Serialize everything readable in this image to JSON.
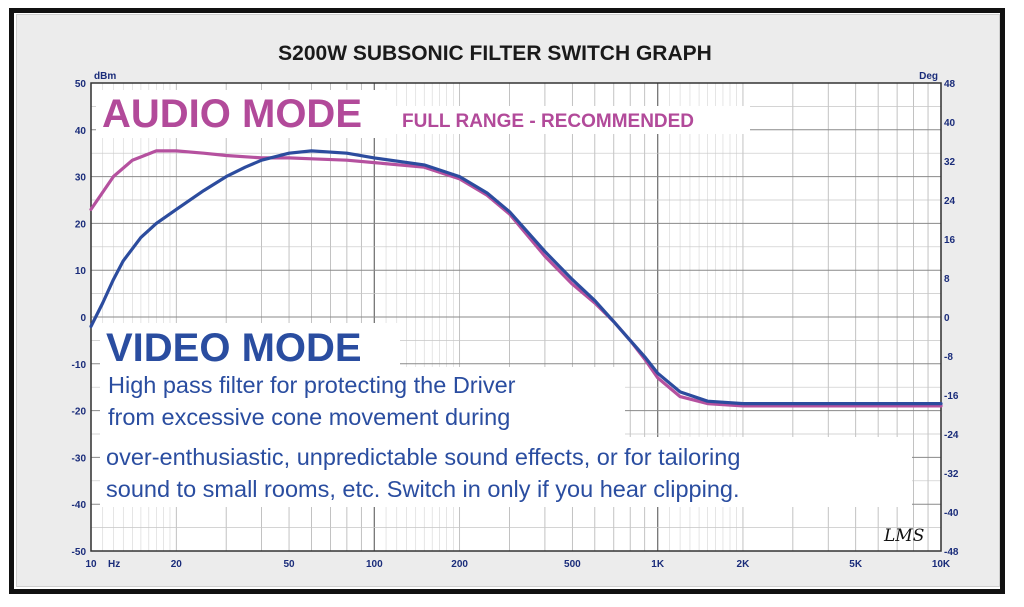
{
  "chart_data": {
    "type": "line",
    "title": "S200W SUBSONIC FILTER SWITCH GRAPH",
    "x_scale": "log",
    "xlim": [
      10,
      10000
    ],
    "x_ticks": [
      {
        "value": 10,
        "label": "10"
      },
      {
        "value": 20,
        "label": "20"
      },
      {
        "value": 50,
        "label": "50"
      },
      {
        "value": 100,
        "label": "100"
      },
      {
        "value": 200,
        "label": "200"
      },
      {
        "value": 500,
        "label": "500"
      },
      {
        "value": 1000,
        "label": "1K"
      },
      {
        "value": 2000,
        "label": "2K"
      },
      {
        "value": 5000,
        "label": "5K"
      },
      {
        "value": 10000,
        "label": "10K"
      }
    ],
    "x_unit": "Hz",
    "y_left_unit": "dBm",
    "ylim_left": [
      -50,
      50
    ],
    "y_left_ticks": [
      "50",
      "40",
      "30",
      "20",
      "10",
      "0",
      "-10",
      "-20",
      "-30",
      "-40",
      "-50"
    ],
    "y_right_unit": "Deg",
    "ylim_right": [
      -48,
      48
    ],
    "y_right_ticks": [
      "48",
      "40",
      "32",
      "24",
      "16",
      "8",
      "0",
      "-8",
      "-16",
      "-24",
      "-32",
      "-40",
      "-48"
    ],
    "grid": true,
    "series": [
      {
        "name": "AUDIO MODE",
        "color": "#b5519f",
        "x": [
          10,
          12,
          14,
          17,
          20,
          25,
          30,
          40,
          50,
          60,
          80,
          100,
          150,
          200,
          250,
          300,
          400,
          500,
          600,
          700,
          800,
          900,
          1000,
          1200,
          1500,
          2000,
          3000,
          5000,
          10000
        ],
        "y": [
          23,
          30,
          33.5,
          35.5,
          35.5,
          35,
          34.5,
          34,
          34,
          33.8,
          33.5,
          33,
          32,
          29.5,
          26,
          22,
          13,
          7,
          3,
          -1,
          -5,
          -9,
          -13,
          -17,
          -18.5,
          -19,
          -19,
          -19,
          -19
        ]
      },
      {
        "name": "VIDEO MODE",
        "color": "#2c4c9e",
        "x": [
          10,
          11,
          12,
          13,
          15,
          17,
          20,
          25,
          30,
          35,
          40,
          50,
          60,
          80,
          100,
          150,
          200,
          250,
          300,
          400,
          500,
          600,
          700,
          800,
          900,
          1000,
          1200,
          1500,
          2000,
          3000,
          5000,
          10000
        ],
        "y": [
          -2,
          3,
          8,
          12,
          17,
          20,
          23,
          27,
          30,
          32,
          33.5,
          35,
          35.5,
          35,
          34,
          32.5,
          30,
          26.5,
          22.5,
          14,
          8,
          3.5,
          -1,
          -5,
          -8.5,
          -12,
          -16,
          -18,
          -18.5,
          -18.5,
          -18.5,
          -18.5
        ]
      }
    ],
    "annotations": {
      "audio_title": "AUDIO MODE",
      "audio_subtitle": "FULL RANGE - RECOMMENDED",
      "video_title": "VIDEO MODE",
      "video_lines": [
        "High pass filter for protecting the Driver",
        "from excessive cone movement during",
        "over-enthusiastic, unpredictable sound effects, or for tailoring",
        "sound to small rooms, etc. Switch in only if you hear clipping."
      ],
      "signature": "LMS"
    }
  }
}
